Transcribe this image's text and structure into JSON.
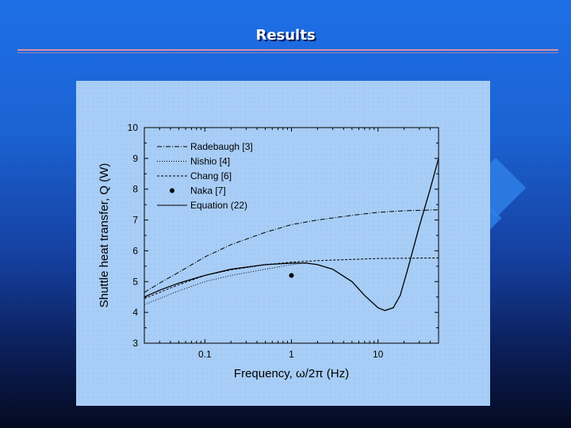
{
  "slide": {
    "title": "Results"
  },
  "chart_data": {
    "type": "line",
    "title": "",
    "xlabel": "Frequency, ω/2π (Hz)",
    "ylabel": "Shuttle heat transfer, Q (W)",
    "xscale": "log",
    "xlim": [
      0.02,
      50
    ],
    "ylim": [
      3,
      10
    ],
    "xticks": [
      {
        "value": 0.1,
        "label": "0.1"
      },
      {
        "value": 1,
        "label": "1"
      },
      {
        "value": 10,
        "label": "10"
      }
    ],
    "yticks": [
      3,
      4,
      5,
      6,
      7,
      8,
      9,
      10
    ],
    "legend_position": "top-left",
    "series": [
      {
        "name": "Radebaugh [3]",
        "style": "dash-dot",
        "x": [
          0.02,
          0.03,
          0.05,
          0.1,
          0.2,
          0.5,
          1,
          2,
          5,
          10,
          20,
          50
        ],
        "y": [
          4.65,
          4.95,
          5.3,
          5.8,
          6.2,
          6.6,
          6.85,
          7.0,
          7.15,
          7.25,
          7.3,
          7.33
        ]
      },
      {
        "name": "Nishio [4]",
        "style": "dotted",
        "x": [
          0.02,
          0.03,
          0.05,
          0.1,
          0.2,
          0.5,
          1,
          1.2,
          1.5
        ],
        "y": [
          4.25,
          4.45,
          4.7,
          5.0,
          5.2,
          5.4,
          5.55,
          5.58,
          5.62
        ]
      },
      {
        "name": "Chang [6]",
        "style": "dashed",
        "x": [
          0.02,
          0.03,
          0.05,
          0.1,
          0.2,
          0.5,
          1,
          2,
          5,
          10,
          20,
          50
        ],
        "y": [
          4.45,
          4.65,
          4.9,
          5.2,
          5.38,
          5.55,
          5.63,
          5.68,
          5.72,
          5.75,
          5.76,
          5.77
        ]
      },
      {
        "name": "Naka [7]",
        "style": "marker",
        "x": [
          1
        ],
        "y": [
          5.2
        ]
      },
      {
        "name": "Equation (22)",
        "style": "solid",
        "x": [
          0.02,
          0.03,
          0.05,
          0.1,
          0.2,
          0.5,
          1,
          1.5,
          2,
          3,
          5,
          7,
          10,
          12,
          15,
          18,
          22,
          30,
          40,
          50
        ],
        "y": [
          4.5,
          4.72,
          4.95,
          5.2,
          5.4,
          5.55,
          5.6,
          5.6,
          5.55,
          5.4,
          5.0,
          4.55,
          4.15,
          4.06,
          4.15,
          4.55,
          5.4,
          6.8,
          8.0,
          9.0
        ]
      }
    ]
  }
}
